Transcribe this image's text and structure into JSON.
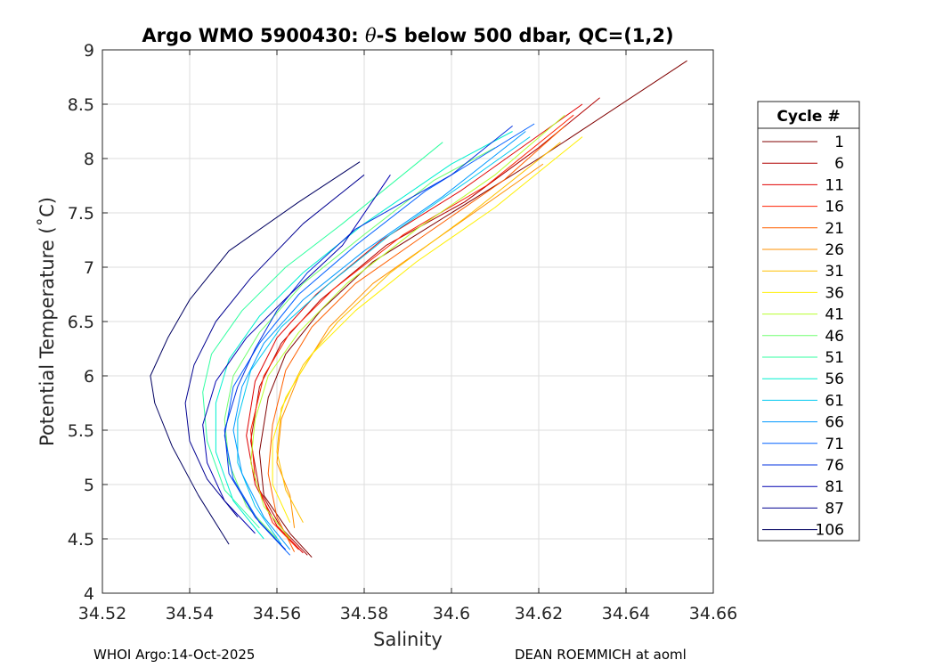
{
  "chart_data": {
    "type": "line",
    "title": {
      "prefix": "Argo WMO 5900430: ",
      "symbol": "θ",
      "suffix": "-S below 500 dbar,  QC=(1,2)"
    },
    "xlabel": "Salinity",
    "ylabel": "Potential Temperature (˚C)",
    "xlim": [
      34.52,
      34.66
    ],
    "ylim": [
      4,
      9
    ],
    "xticks": [
      "34.52",
      "34.54",
      "34.56",
      "34.58",
      "34.6",
      "34.62",
      "34.64",
      "34.66"
    ],
    "yticks": [
      "4",
      "4.5",
      "5",
      "5.5",
      "6",
      "6.5",
      "7",
      "7.5",
      "8",
      "8.5",
      "9"
    ],
    "grid": true,
    "legend": {
      "title": "Cycle #",
      "position": "right",
      "entries": [
        {
          "label": "1",
          "color": "#800000"
        },
        {
          "label": "6",
          "color": "#b00000"
        },
        {
          "label": "11",
          "color": "#e00000"
        },
        {
          "label": "16",
          "color": "#ff2000"
        },
        {
          "label": "21",
          "color": "#ff6000"
        },
        {
          "label": "26",
          "color": "#ff9000"
        },
        {
          "label": "31",
          "color": "#ffc000"
        },
        {
          "label": "36",
          "color": "#ffef00"
        },
        {
          "label": "41",
          "color": "#b8ff30"
        },
        {
          "label": "46",
          "color": "#70ff70"
        },
        {
          "label": "51",
          "color": "#30ffa0"
        },
        {
          "label": "56",
          "color": "#00f0d0"
        },
        {
          "label": "61",
          "color": "#00c8f0"
        },
        {
          "label": "66",
          "color": "#0098ff"
        },
        {
          "label": "71",
          "color": "#0060ff"
        },
        {
          "label": "76",
          "color": "#0030e0"
        },
        {
          "label": "81",
          "color": "#0000b0"
        },
        {
          "label": "87",
          "color": "#000090"
        },
        {
          "label": "106",
          "color": "#000060"
        }
      ]
    },
    "series": [
      {
        "name": "Cycle 1",
        "color": "#800000",
        "points": [
          [
            34.568,
            4.33
          ],
          [
            34.563,
            4.55
          ],
          [
            34.557,
            4.9
          ],
          [
            34.556,
            5.3
          ],
          [
            34.558,
            5.8
          ],
          [
            34.562,
            6.2
          ],
          [
            34.57,
            6.6
          ],
          [
            34.582,
            7.05
          ],
          [
            34.6,
            7.5
          ],
          [
            34.62,
            8.0
          ],
          [
            34.654,
            8.9
          ]
        ]
      },
      {
        "name": "Cycle 6",
        "color": "#b00000",
        "points": [
          [
            34.567,
            4.35
          ],
          [
            34.561,
            4.6
          ],
          [
            34.556,
            4.95
          ],
          [
            34.554,
            5.4
          ],
          [
            34.556,
            5.9
          ],
          [
            34.561,
            6.3
          ],
          [
            34.57,
            6.7
          ],
          [
            34.585,
            7.2
          ],
          [
            34.603,
            7.6
          ],
          [
            34.62,
            8.1
          ],
          [
            34.634,
            8.56
          ]
        ]
      },
      {
        "name": "Cycle 11",
        "color": "#e00000",
        "points": [
          [
            34.566,
            4.37
          ],
          [
            34.56,
            4.62
          ],
          [
            34.555,
            5.0
          ],
          [
            34.553,
            5.45
          ],
          [
            34.555,
            5.95
          ],
          [
            34.56,
            6.35
          ],
          [
            34.569,
            6.75
          ],
          [
            34.584,
            7.25
          ],
          [
            34.602,
            7.7
          ],
          [
            34.63,
            8.5
          ]
        ]
      },
      {
        "name": "Cycle 16",
        "color": "#ff2000",
        "points": [
          [
            34.565,
            4.4
          ],
          [
            34.559,
            4.65
          ],
          [
            34.555,
            5.05
          ],
          [
            34.554,
            5.5
          ],
          [
            34.557,
            6.0
          ],
          [
            34.563,
            6.4
          ],
          [
            34.573,
            6.8
          ],
          [
            34.589,
            7.3
          ],
          [
            34.608,
            7.75
          ],
          [
            34.628,
            8.4
          ]
        ]
      },
      {
        "name": "Cycle 21",
        "color": "#ff6000",
        "points": [
          [
            34.564,
            4.38
          ],
          [
            34.56,
            4.7
          ],
          [
            34.558,
            5.1
          ],
          [
            34.559,
            5.55
          ],
          [
            34.562,
            6.05
          ],
          [
            34.568,
            6.45
          ],
          [
            34.578,
            6.85
          ],
          [
            34.594,
            7.3
          ],
          [
            34.612,
            7.8
          ],
          [
            34.626,
            8.3
          ]
        ]
      },
      {
        "name": "Cycle 26",
        "color": "#ff9000",
        "points": [
          [
            34.564,
            4.6
          ],
          [
            34.563,
            4.9
          ],
          [
            34.56,
            5.2
          ],
          [
            34.561,
            5.6
          ],
          [
            34.565,
            6.0
          ],
          [
            34.572,
            6.45
          ],
          [
            34.582,
            6.85
          ],
          [
            34.598,
            7.3
          ],
          [
            34.621,
            7.95
          ]
        ]
      },
      {
        "name": "Cycle 31",
        "color": "#ffc000",
        "points": [
          [
            34.566,
            4.65
          ],
          [
            34.562,
            4.95
          ],
          [
            34.56,
            5.3
          ],
          [
            34.561,
            5.7
          ],
          [
            34.566,
            6.1
          ],
          [
            34.574,
            6.5
          ],
          [
            34.586,
            6.95
          ],
          [
            34.603,
            7.45
          ],
          [
            34.625,
            8.15
          ]
        ]
      },
      {
        "name": "Cycle 36",
        "color": "#ffef00",
        "points": [
          [
            34.563,
            4.65
          ],
          [
            34.559,
            5.0
          ],
          [
            34.559,
            5.4
          ],
          [
            34.562,
            5.8
          ],
          [
            34.568,
            6.2
          ],
          [
            34.578,
            6.6
          ],
          [
            34.592,
            7.05
          ],
          [
            34.61,
            7.55
          ],
          [
            34.63,
            8.2
          ]
        ]
      },
      {
        "name": "Cycle 41",
        "color": "#b8ff30",
        "points": [
          [
            34.563,
            4.5
          ],
          [
            34.557,
            4.8
          ],
          [
            34.554,
            5.2
          ],
          [
            34.555,
            5.6
          ],
          [
            34.558,
            6.0
          ],
          [
            34.565,
            6.4
          ],
          [
            34.576,
            6.85
          ],
          [
            34.592,
            7.35
          ],
          [
            34.61,
            7.85
          ],
          [
            34.626,
            8.4
          ]
        ]
      },
      {
        "name": "Cycle 46",
        "color": "#70ff70",
        "points": [
          [
            34.56,
            4.5
          ],
          [
            34.553,
            4.8
          ],
          [
            34.549,
            5.2
          ],
          [
            34.548,
            5.6
          ],
          [
            34.55,
            6.0
          ],
          [
            34.556,
            6.4
          ],
          [
            34.566,
            6.85
          ],
          [
            34.58,
            7.3
          ],
          [
            34.596,
            7.8
          ],
          [
            34.61,
            8.1
          ]
        ]
      },
      {
        "name": "Cycle 51",
        "color": "#30ffa0",
        "points": [
          [
            34.556,
            4.6
          ],
          [
            34.548,
            4.95
          ],
          [
            34.544,
            5.4
          ],
          [
            34.543,
            5.85
          ],
          [
            34.545,
            6.2
          ],
          [
            34.552,
            6.6
          ],
          [
            34.562,
            7.0
          ],
          [
            34.575,
            7.4
          ],
          [
            34.598,
            8.15
          ]
        ]
      },
      {
        "name": "Cycle 56",
        "color": "#00f0d0",
        "points": [
          [
            34.557,
            4.5
          ],
          [
            34.55,
            4.85
          ],
          [
            34.546,
            5.3
          ],
          [
            34.546,
            5.75
          ],
          [
            34.549,
            6.15
          ],
          [
            34.556,
            6.55
          ],
          [
            34.566,
            6.95
          ],
          [
            34.58,
            7.4
          ],
          [
            34.6,
            7.95
          ],
          [
            34.614,
            8.25
          ]
        ]
      },
      {
        "name": "Cycle 61",
        "color": "#00c8f0",
        "points": [
          [
            34.561,
            4.45
          ],
          [
            34.555,
            4.8
          ],
          [
            34.551,
            5.2
          ],
          [
            34.551,
            5.6
          ],
          [
            34.554,
            6.05
          ],
          [
            34.561,
            6.45
          ],
          [
            34.572,
            6.85
          ],
          [
            34.586,
            7.3
          ],
          [
            34.604,
            7.8
          ],
          [
            34.618,
            8.2
          ]
        ]
      },
      {
        "name": "Cycle 66",
        "color": "#0098ff",
        "points": [
          [
            34.563,
            4.4
          ],
          [
            34.557,
            4.7
          ],
          [
            34.552,
            5.1
          ],
          [
            34.55,
            5.5
          ],
          [
            34.552,
            5.9
          ],
          [
            34.557,
            6.3
          ],
          [
            34.566,
            6.7
          ],
          [
            34.58,
            7.15
          ],
          [
            34.598,
            7.65
          ],
          [
            34.617,
            8.25
          ]
        ]
      },
      {
        "name": "Cycle 71",
        "color": "#0060ff",
        "points": [
          [
            34.563,
            4.35
          ],
          [
            34.556,
            4.65
          ],
          [
            34.55,
            5.05
          ],
          [
            34.548,
            5.45
          ],
          [
            34.55,
            5.9
          ],
          [
            34.556,
            6.3
          ],
          [
            34.565,
            6.75
          ],
          [
            34.578,
            7.2
          ],
          [
            34.594,
            7.7
          ],
          [
            34.619,
            8.32
          ]
        ]
      },
      {
        "name": "Cycle 76",
        "color": "#0030e0",
        "points": [
          [
            34.562,
            4.4
          ],
          [
            34.555,
            4.7
          ],
          [
            34.549,
            5.1
          ],
          [
            34.548,
            5.5
          ],
          [
            34.551,
            5.9
          ],
          [
            34.555,
            6.25
          ],
          [
            34.56,
            6.6
          ],
          [
            34.567,
            6.95
          ],
          [
            34.578,
            7.35
          ],
          [
            34.6,
            7.85
          ],
          [
            34.614,
            8.3
          ]
        ]
      },
      {
        "name": "Cycle 81",
        "color": "#0000b0",
        "points": [
          [
            34.555,
            4.55
          ],
          [
            34.548,
            4.85
          ],
          [
            34.544,
            5.2
          ],
          [
            34.543,
            5.55
          ],
          [
            34.546,
            5.95
          ],
          [
            34.553,
            6.35
          ],
          [
            34.563,
            6.75
          ],
          [
            34.575,
            7.2
          ],
          [
            34.586,
            7.85
          ]
        ]
      },
      {
        "name": "Cycle 87",
        "color": "#000090",
        "points": [
          [
            34.551,
            4.7
          ],
          [
            34.544,
            5.05
          ],
          [
            34.54,
            5.4
          ],
          [
            34.539,
            5.75
          ],
          [
            34.541,
            6.1
          ],
          [
            34.546,
            6.5
          ],
          [
            34.554,
            6.9
          ],
          [
            34.566,
            7.4
          ],
          [
            34.58,
            7.85
          ]
        ]
      },
      {
        "name": "Cycle 106",
        "color": "#000060",
        "points": [
          [
            34.549,
            4.45
          ],
          [
            34.542,
            4.9
          ],
          [
            34.536,
            5.35
          ],
          [
            34.532,
            5.75
          ],
          [
            34.531,
            6.0
          ],
          [
            34.535,
            6.35
          ],
          [
            34.54,
            6.7
          ],
          [
            34.549,
            7.15
          ],
          [
            34.565,
            7.6
          ],
          [
            34.579,
            7.97
          ]
        ]
      }
    ]
  },
  "footer": {
    "left": "WHOI Argo:14-Oct-2025",
    "right": "DEAN ROEMMICH at aoml"
  }
}
